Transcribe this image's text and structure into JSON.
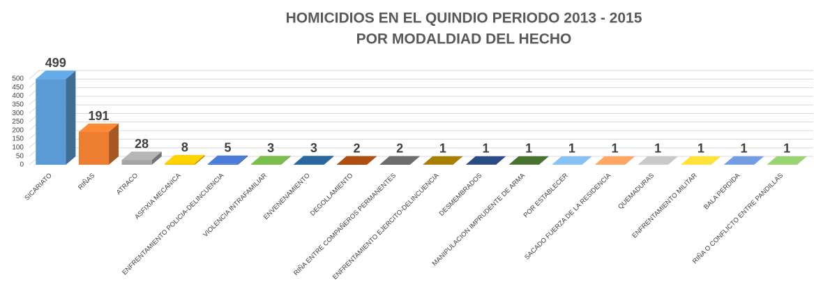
{
  "chart_data": {
    "type": "bar3d",
    "title": "HOMICIDIOS EN EL QUINDIO PERIODO 2013 - 2015",
    "subtitle": "POR MODALDIAD DEL HECHO",
    "categories": [
      "SICARIATO",
      "RIÑAS",
      "ATRACO",
      "ASFIXIA MECANICA",
      "ENFRENTAMIENTO POLICIA-DELINCUENCIA",
      "VIOLENCIA INTRAFAMILIAR",
      "ENVENENAMIENTO",
      "DEGOLLAMIENTO",
      "RIÑA ENTRE COMPAÑEROS PERMANENTES",
      "ENFRENTAMIENTO EJERCITO-DELINCUENCIA",
      "DESMEMBRADOS",
      "MANIPULACION IMPRUDENTE DE ARMA",
      "POR ESTABLECER",
      "SACADO FUERZA DE LA RESIDENCIA",
      "QUEMADURAS",
      "ENFRENTAMIENTO MILITAR",
      "BALA PERDIDA",
      "RIÑA O CONFLICTO ENTRE PANDILLAS"
    ],
    "values": [
      499,
      191,
      28,
      8,
      5,
      3,
      3,
      2,
      2,
      1,
      1,
      1,
      1,
      1,
      1,
      1,
      1,
      1
    ],
    "colors": [
      "#5b9bd5",
      "#ed7d31",
      "#a5a5a5",
      "#ffc000",
      "#4472c4",
      "#70ad47",
      "#255e91",
      "#9e480e",
      "#636363",
      "#997300",
      "#264478",
      "#43682b",
      "#7cafdd",
      "#f1975a",
      "#b7b7b7",
      "#ffcd33",
      "#698ed0",
      "#8cc168"
    ],
    "ylim": [
      0,
      500
    ],
    "yticks": [
      0,
      50,
      100,
      150,
      200,
      250,
      300,
      350,
      400,
      450,
      500
    ],
    "grid": true
  }
}
